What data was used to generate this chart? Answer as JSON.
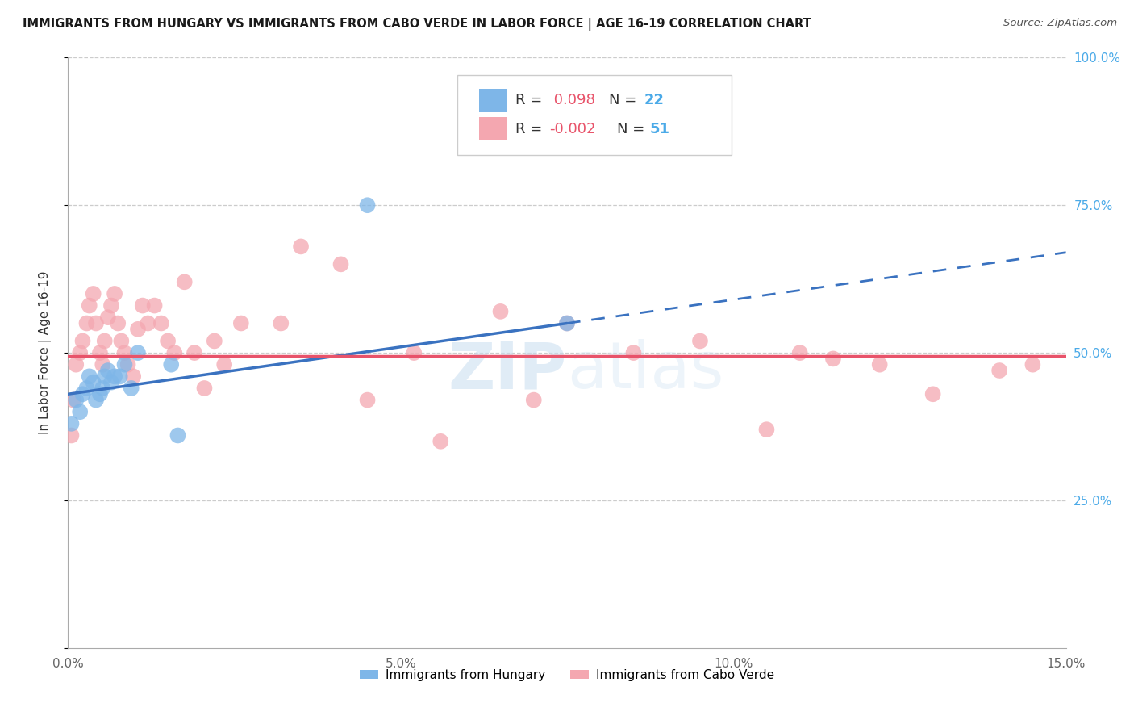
{
  "title": "IMMIGRANTS FROM HUNGARY VS IMMIGRANTS FROM CABO VERDE IN LABOR FORCE | AGE 16-19 CORRELATION CHART",
  "source": "Source: ZipAtlas.com",
  "ylabel": "In Labor Force | Age 16-19",
  "xlim": [
    0.0,
    15.0
  ],
  "ylim": [
    0.0,
    100.0
  ],
  "xticklabels": [
    "0.0%",
    "5.0%",
    "10.0%",
    "15.0%"
  ],
  "xtick_vals": [
    0.0,
    5.0,
    10.0,
    15.0
  ],
  "ytick_vals": [
    0.0,
    25.0,
    50.0,
    75.0,
    100.0
  ],
  "yticklabels_right": [
    "",
    "25.0%",
    "50.0%",
    "75.0%",
    "100.0%"
  ],
  "hungary_R": 0.098,
  "hungary_N": 22,
  "caboverde_R": -0.002,
  "caboverde_N": 51,
  "hungary_color": "#7EB6E8",
  "caboverde_color": "#F4A7B0",
  "hungary_line_color": "#3A72C0",
  "caboverde_line_color": "#E8536A",
  "watermark_zip": "ZIP",
  "watermark_atlas": "atlas",
  "legend_label_hungary": "Immigrants from Hungary",
  "legend_label_caboverde": "Immigrants from Cabo Verde",
  "hungary_x": [
    0.05,
    0.12,
    0.18,
    0.22,
    0.28,
    0.32,
    0.38,
    0.42,
    0.48,
    0.52,
    0.55,
    0.6,
    0.65,
    0.7,
    0.78,
    0.85,
    0.95,
    1.05,
    1.55,
    1.65,
    4.5,
    7.5
  ],
  "hungary_y": [
    38,
    42,
    40,
    43,
    44,
    46,
    45,
    42,
    43,
    44,
    46,
    47,
    45,
    46,
    46,
    48,
    44,
    50,
    48,
    36,
    75,
    55
  ],
  "caboverde_x": [
    0.05,
    0.08,
    0.12,
    0.18,
    0.22,
    0.28,
    0.32,
    0.38,
    0.42,
    0.48,
    0.52,
    0.55,
    0.6,
    0.65,
    0.7,
    0.75,
    0.8,
    0.85,
    0.9,
    0.98,
    1.05,
    1.12,
    1.2,
    1.3,
    1.4,
    1.5,
    1.6,
    1.75,
    1.9,
    2.05,
    2.2,
    2.35,
    2.6,
    3.2,
    3.5,
    4.1,
    4.5,
    5.2,
    5.6,
    6.5,
    7.0,
    7.5,
    8.5,
    9.5,
    10.5,
    11.0,
    11.5,
    12.2,
    13.0,
    14.0,
    14.5
  ],
  "caboverde_y": [
    36,
    42,
    48,
    50,
    52,
    55,
    58,
    60,
    55,
    50,
    48,
    52,
    56,
    58,
    60,
    55,
    52,
    50,
    48,
    46,
    54,
    58,
    55,
    58,
    55,
    52,
    50,
    62,
    50,
    44,
    52,
    48,
    55,
    55,
    68,
    65,
    42,
    50,
    35,
    57,
    42,
    55,
    50,
    52,
    37,
    50,
    49,
    48,
    43,
    47,
    48
  ],
  "hungary_line_x0": 0.0,
  "hungary_line_y0": 43.0,
  "hungary_line_x1": 7.5,
  "hungary_line_y1": 55.0,
  "hungary_line_xmax": 15.0,
  "hungary_line_ymax": 67.0,
  "caboverde_line_y": 49.5,
  "grid_color": "#cccccc",
  "grid_linestyle": "--",
  "tick_color": "#aaaaaa",
  "right_tick_color": "#4BAAE8",
  "spine_color": "#aaaaaa"
}
